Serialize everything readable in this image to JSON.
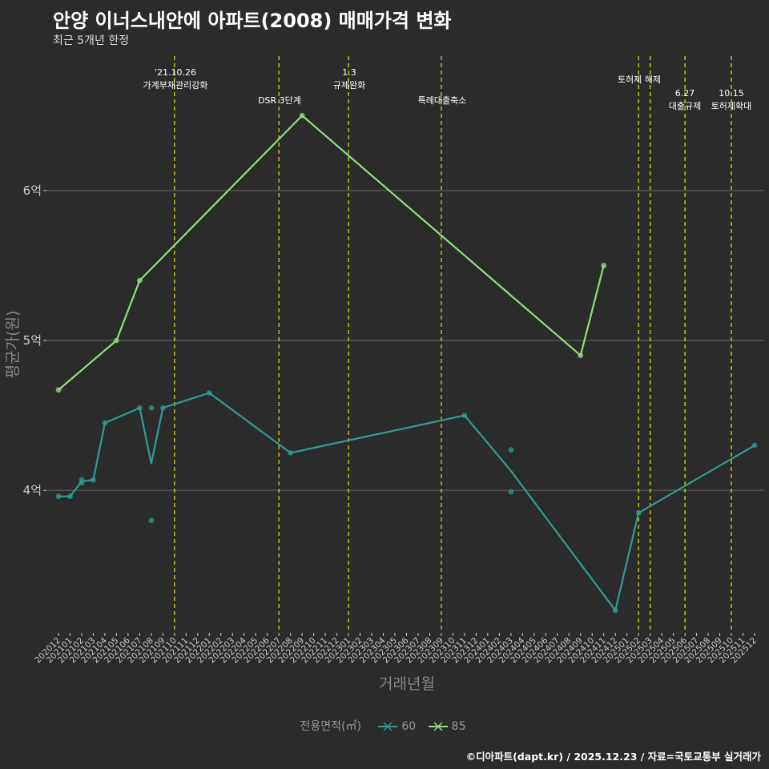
{
  "colors": {
    "background": "#2b2b2b",
    "grid": "#6a6a6a",
    "event_line": "#e8e800",
    "series_60": "#2f9c95",
    "series_85": "#90e07a"
  },
  "chart_data": {
    "type": "line",
    "title": "안양 이너스내안에 아파트(2008) 매매가격 변화",
    "subtitle": "최근 5개년 한정",
    "xlabel": "거래년월",
    "ylabel": "평균가(원)",
    "caption": "©디아파트(dapt.kr) / 2025.12.23 / 자료=국토교통부 실거래가",
    "legend_title": "전용면적(㎡)",
    "legend_position": "bottom",
    "ylim": [
      3.05,
      6.95
    ],
    "yticks": [
      4,
      5,
      6
    ],
    "ytick_labels": [
      "4억",
      "5억",
      "6억"
    ],
    "categories": [
      "202012",
      "202101",
      "202102",
      "202103",
      "202104",
      "202105",
      "202106",
      "202107",
      "202108",
      "202109",
      "202110",
      "202111",
      "202112",
      "202201",
      "202202",
      "202203",
      "202204",
      "202205",
      "202206",
      "202207",
      "202208",
      "202209",
      "202210",
      "202211",
      "202212",
      "202301",
      "202302",
      "202303",
      "202304",
      "202305",
      "202306",
      "202307",
      "202308",
      "202309",
      "202310",
      "202311",
      "202312",
      "202401",
      "202402",
      "202403",
      "202404",
      "202405",
      "202406",
      "202407",
      "202408",
      "202409",
      "202410",
      "202411",
      "202412",
      "202501",
      "202502",
      "202503",
      "202504",
      "202505",
      "202506",
      "202507",
      "202508",
      "202509",
      "202510",
      "202511",
      "202512"
    ],
    "series": [
      {
        "name": "60",
        "color": "#2f9c95",
        "line": [
          {
            "x": "202012",
            "y": 3.96
          },
          {
            "x": "202101",
            "y": 3.96
          },
          {
            "x": "202102",
            "y": 4.06
          },
          {
            "x": "202103",
            "y": 4.07
          },
          {
            "x": "202104",
            "y": 4.45
          },
          {
            "x": "202107",
            "y": 4.55
          },
          {
            "x": "202108",
            "y": 4.18
          },
          {
            "x": "202109",
            "y": 4.55
          },
          {
            "x": "202201",
            "y": 4.65
          },
          {
            "x": "202208",
            "y": 4.25
          },
          {
            "x": "202311",
            "y": 4.5
          },
          {
            "x": "202403",
            "y": 4.13
          },
          {
            "x": "202412",
            "y": 3.2
          },
          {
            "x": "202502",
            "y": 3.85
          },
          {
            "x": "202512",
            "y": 4.3
          }
        ],
        "points": [
          {
            "x": "202012",
            "y": 3.96
          },
          {
            "x": "202101",
            "y": 3.96
          },
          {
            "x": "202102",
            "y": 4.07
          },
          {
            "x": "202102",
            "y": 4.05
          },
          {
            "x": "202103",
            "y": 4.07
          },
          {
            "x": "202104",
            "y": 4.45
          },
          {
            "x": "202107",
            "y": 4.55
          },
          {
            "x": "202108",
            "y": 4.55
          },
          {
            "x": "202108",
            "y": 3.8
          },
          {
            "x": "202109",
            "y": 4.55
          },
          {
            "x": "202201",
            "y": 4.65
          },
          {
            "x": "202208",
            "y": 4.25
          },
          {
            "x": "202311",
            "y": 4.5
          },
          {
            "x": "202403",
            "y": 4.27
          },
          {
            "x": "202403",
            "y": 3.99
          },
          {
            "x": "202412",
            "y": 3.2
          },
          {
            "x": "202502",
            "y": 3.85
          },
          {
            "x": "202512",
            "y": 4.3
          }
        ]
      },
      {
        "name": "85",
        "color": "#90e07a",
        "line": [
          {
            "x": "202012",
            "y": 4.67
          },
          {
            "x": "202105",
            "y": 5.0
          },
          {
            "x": "202107",
            "y": 5.4
          },
          {
            "x": "202209",
            "y": 6.5
          },
          {
            "x": "202409",
            "y": 4.9
          },
          {
            "x": "202411",
            "y": 5.5
          }
        ],
        "points": [
          {
            "x": "202012",
            "y": 4.67
          },
          {
            "x": "202105",
            "y": 5.0
          },
          {
            "x": "202107",
            "y": 5.4
          },
          {
            "x": "202209",
            "y": 6.5
          },
          {
            "x": "202409",
            "y": 4.9
          },
          {
            "x": "202411",
            "y": 5.5
          }
        ]
      }
    ],
    "events": [
      {
        "x": "202110",
        "lines": [
          "'21.10.26",
          "가계부채관리강화"
        ]
      },
      {
        "x": "202207",
        "lines": [
          "DSR 3단계"
        ]
      },
      {
        "x": "202301",
        "lines": [
          "1.3",
          "규제완화"
        ]
      },
      {
        "x": "202309",
        "lines": [
          "특례대출축소"
        ]
      },
      {
        "x": "202502",
        "lines": [
          "토허제 해제"
        ]
      },
      {
        "x": "202503",
        "lines": []
      },
      {
        "x": "202506",
        "lines": [
          "6.27",
          "대출규제"
        ]
      },
      {
        "x": "202510",
        "lines": [
          "10.15",
          "토허제확대"
        ]
      }
    ]
  }
}
